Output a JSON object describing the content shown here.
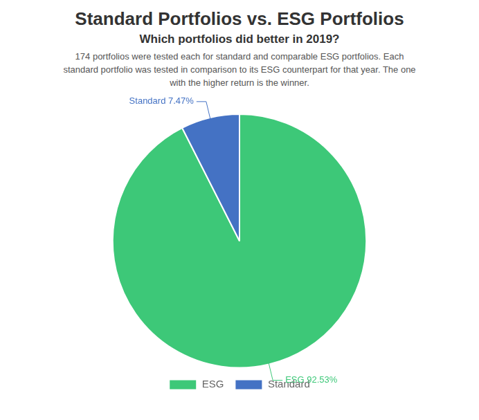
{
  "chart_data": {
    "type": "pie",
    "title": "Standard Portfolios vs. ESG Portfolios",
    "subtitle": "Which portfolios did better in 2019?",
    "description": "174 portfolios were tested each for standard and comparable ESG portfolios. Each\nstandard portfolio was tested in comparison to its ESG counterpart for that year. The one\nwith the higher return is the winner.",
    "categories": [
      "ESG",
      "Standard"
    ],
    "values": [
      92.53,
      7.47
    ],
    "colors": [
      "#3dc878",
      "#4472c4"
    ],
    "annotations": [
      {
        "text": "ESG 92.53%",
        "color": "#3dc878"
      },
      {
        "text": "Standard 7.47%",
        "color": "#4472c4"
      }
    ],
    "legend": "bottom"
  }
}
